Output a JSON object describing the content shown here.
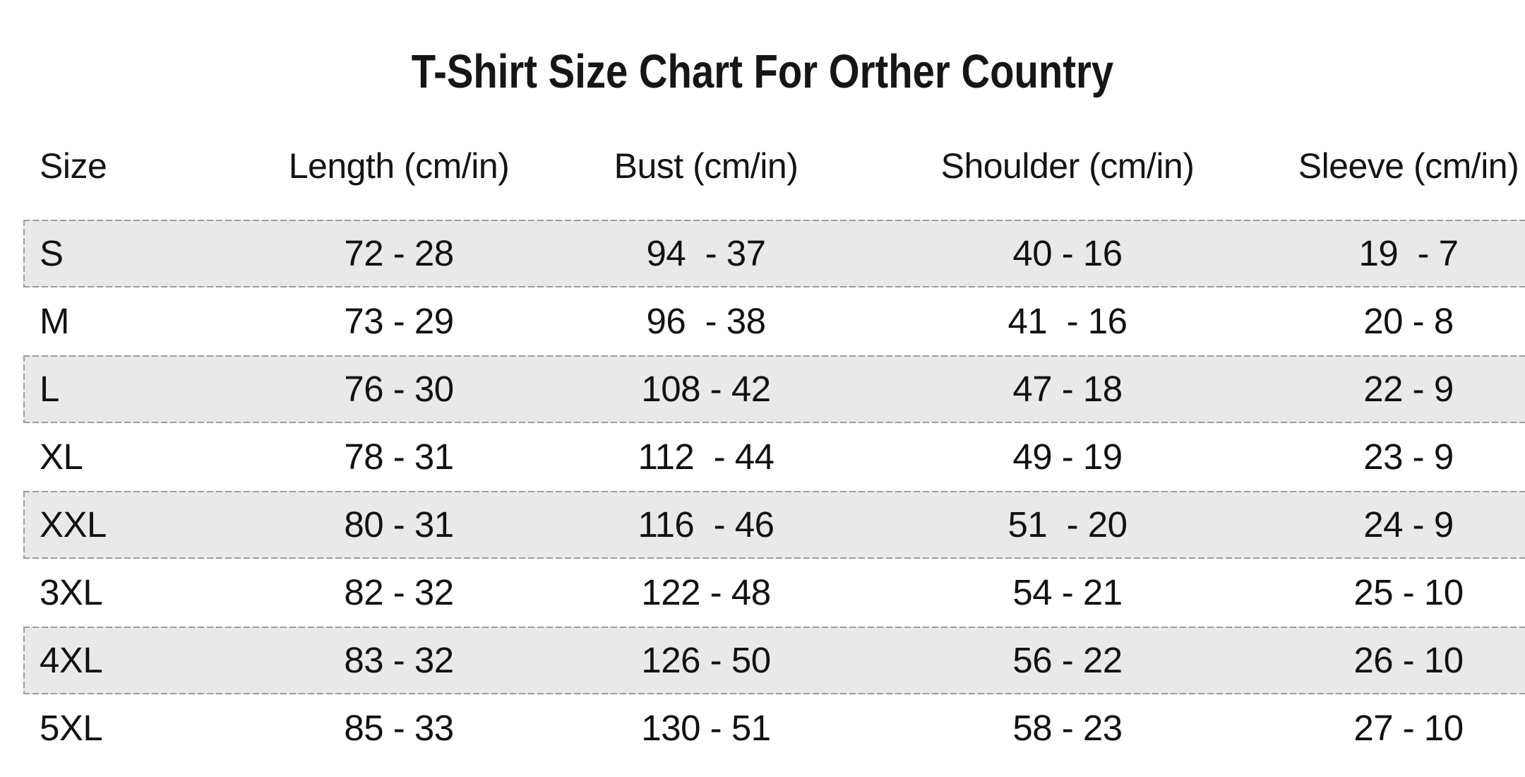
{
  "title": "T-Shirt Size Chart For Orther Country",
  "chart_data": {
    "type": "table",
    "title": "T-Shirt Size Chart For Orther Country",
    "columns": [
      "Size",
      "Length (cm/in)",
      "Bust (cm/in)",
      "Shoulder (cm/in)",
      "Sleeve (cm/in)"
    ],
    "rows": [
      [
        "S",
        "72 - 28",
        "94  - 37",
        "40 - 16",
        "19  - 7"
      ],
      [
        "M",
        "73 - 29",
        "96  - 38",
        "41  - 16",
        "20 - 8"
      ],
      [
        "L",
        "76 - 30",
        "108 - 42",
        "47 - 18",
        "22 - 9"
      ],
      [
        "XL",
        "78 - 31",
        "112  - 44",
        "49 - 19",
        "23 - 9"
      ],
      [
        "XXL",
        "80 - 31",
        "116  - 46",
        "51  - 20",
        "24 - 9"
      ],
      [
        "3XL",
        "82 - 32",
        "122 - 48",
        "54 - 21",
        "25 - 10"
      ],
      [
        "4XL",
        "83 - 32",
        "126 - 50",
        "56 - 22",
        "26 - 10"
      ],
      [
        "5XL",
        "85 - 33",
        "130 - 51",
        "58 - 23",
        "27 - 10"
      ]
    ],
    "striped_rows": [
      0,
      2,
      4,
      6
    ],
    "value_format": "cm - in",
    "layout": {
      "stripe_style": "dashed-border-gray-fill",
      "grid": "off",
      "first_column_align": "left",
      "data_columns_align": "center"
    }
  },
  "colors": {
    "background": "#ffffff",
    "text": "#141414",
    "stripe_fill": "#e9e9ea",
    "stripe_dash_border": "#9d9da0"
  }
}
